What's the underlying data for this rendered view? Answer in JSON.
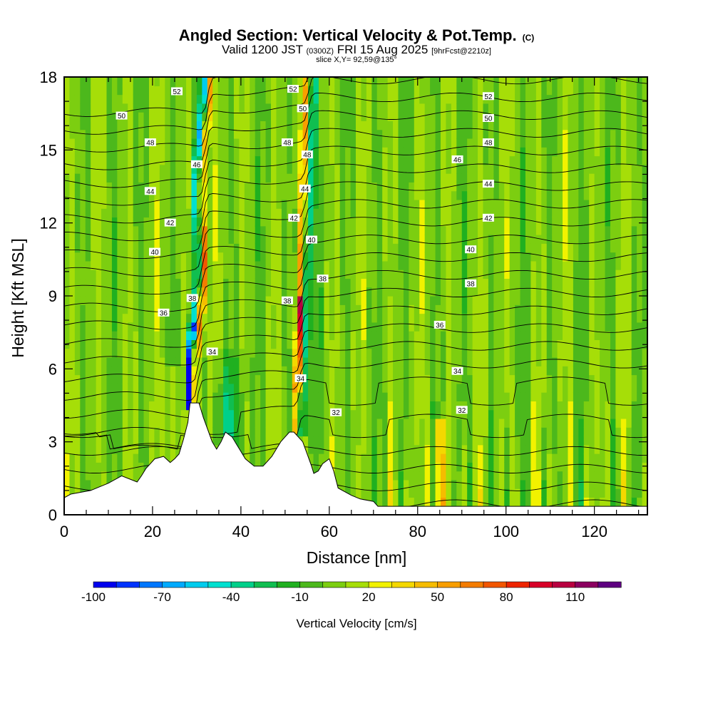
{
  "chart_data": {
    "type": "heatmap",
    "title": "Angled Section: Vertical Velocity & Pot.Temp.",
    "title_suffix": "(C)",
    "subtitle_valid": "Valid 1200 JST",
    "subtitle_utc": "(0300Z)",
    "subtitle_date": "FRI 15 Aug 2025",
    "subtitle_fcst": "[9hrFcst@2210z]",
    "slice_label": "slice X,Y= 92,59@135°",
    "xlabel": "Distance [nm]",
    "ylabel": "Height [Kft MSL]",
    "xlim": [
      0,
      132
    ],
    "ylim": [
      0,
      18
    ],
    "xticks": [
      0,
      20,
      40,
      60,
      80,
      100,
      120
    ],
    "yticks": [
      0,
      3,
      6,
      9,
      12,
      15,
      18
    ],
    "colorbar": {
      "label": "Vertical Velocity [cm/s]",
      "tick_labels": [
        "-100",
        "-70",
        "-40",
        "-10",
        "20",
        "50",
        "80",
        "110"
      ],
      "tick_values": [
        -100,
        -70,
        -40,
        -10,
        20,
        50,
        80,
        110
      ],
      "bins": [
        -100,
        -90,
        -80,
        -70,
        -60,
        -50,
        -40,
        -30,
        -20,
        -10,
        0,
        10,
        20,
        30,
        40,
        50,
        60,
        70,
        80,
        90,
        100,
        110,
        120
      ],
      "colors": [
        "#0000ee",
        "#0033ff",
        "#0077ff",
        "#00aaff",
        "#00ccee",
        "#00e0d0",
        "#00d08a",
        "#10be50",
        "#20b020",
        "#4cb81c",
        "#7cce10",
        "#a6de08",
        "#f2f200",
        "#f4d800",
        "#f6bc00",
        "#f89e00",
        "#f47c00",
        "#f25600",
        "#ee2400",
        "#d80028",
        "#b80040",
        "#8c0060",
        "#5e0080"
      ]
    },
    "theta_contour_labels": [
      {
        "value": "52",
        "x": 25.5,
        "y": 17.4
      },
      {
        "value": "52",
        "x": 51.8,
        "y": 17.5
      },
      {
        "value": "52",
        "x": 96,
        "y": 17.2
      },
      {
        "value": "50",
        "x": 13,
        "y": 16.4
      },
      {
        "value": "50",
        "x": 54,
        "y": 16.7
      },
      {
        "value": "50",
        "x": 96,
        "y": 16.3
      },
      {
        "value": "48",
        "x": 19.5,
        "y": 15.3
      },
      {
        "value": "48",
        "x": 50.5,
        "y": 15.3
      },
      {
        "value": "48",
        "x": 55,
        "y": 14.8
      },
      {
        "value": "48",
        "x": 96,
        "y": 15.3
      },
      {
        "value": "46",
        "x": 30,
        "y": 14.4
      },
      {
        "value": "46",
        "x": 89,
        "y": 14.6
      },
      {
        "value": "44",
        "x": 19.5,
        "y": 13.3
      },
      {
        "value": "44",
        "x": 54.5,
        "y": 13.4
      },
      {
        "value": "44",
        "x": 96,
        "y": 13.6
      },
      {
        "value": "42",
        "x": 24,
        "y": 12
      },
      {
        "value": "42",
        "x": 52,
        "y": 12.2
      },
      {
        "value": "42",
        "x": 96,
        "y": 12.2
      },
      {
        "value": "40",
        "x": 20.5,
        "y": 10.8
      },
      {
        "value": "40",
        "x": 56,
        "y": 11.3
      },
      {
        "value": "40",
        "x": 92,
        "y": 10.9
      },
      {
        "value": "38",
        "x": 58.5,
        "y": 9.7
      },
      {
        "value": "38",
        "x": 92,
        "y": 9.5
      },
      {
        "value": "38",
        "x": 29,
        "y": 8.9
      },
      {
        "value": "38",
        "x": 50.5,
        "y": 8.8
      },
      {
        "value": "36",
        "x": 22.5,
        "y": 8.3
      },
      {
        "value": "36",
        "x": 85,
        "y": 7.8
      },
      {
        "value": "34",
        "x": 33.5,
        "y": 6.7
      },
      {
        "value": "34",
        "x": 53.5,
        "y": 5.6
      },
      {
        "value": "34",
        "x": 89,
        "y": 5.9
      },
      {
        "value": "32",
        "x": 61.5,
        "y": 4.2
      },
      {
        "value": "32",
        "x": 90,
        "y": 4.3
      }
    ],
    "updraft_bands": [
      {
        "name": "left band",
        "x_top": 32,
        "x_bottom": 29.5,
        "peak_cm_s": 75,
        "paired_downdraft_cm_s": -100
      },
      {
        "name": "middle band",
        "x_top": 55,
        "x_bottom": 52.5,
        "peak_cm_s": 95,
        "paired_downdraft_cm_s": -40
      }
    ],
    "terrain_kft": [
      [
        0,
        0.7
      ],
      [
        1.5,
        0.85
      ],
      [
        6,
        1.0
      ],
      [
        10,
        1.3
      ],
      [
        13,
        1.6
      ],
      [
        16.5,
        1.35
      ],
      [
        17.5,
        1.6
      ],
      [
        18.5,
        1.9
      ],
      [
        19.5,
        2.1
      ],
      [
        20.5,
        2.3
      ],
      [
        22.5,
        2.4
      ],
      [
        24,
        2.15
      ],
      [
        25,
        2.3
      ],
      [
        26,
        2.5
      ],
      [
        27,
        3.1
      ],
      [
        28,
        3.8
      ],
      [
        28.5,
        4.6
      ],
      [
        30.5,
        4.6
      ],
      [
        31.5,
        4.0
      ],
      [
        32.5,
        3.5
      ],
      [
        33.5,
        3.0
      ],
      [
        34.5,
        2.7
      ],
      [
        35.5,
        3.0
      ],
      [
        36.5,
        3.4
      ],
      [
        38,
        3.2
      ],
      [
        39,
        2.9
      ],
      [
        40,
        2.6
      ],
      [
        41,
        2.3
      ],
      [
        43,
        2.0
      ],
      [
        45,
        2.0
      ],
      [
        46,
        2.2
      ],
      [
        47,
        2.4
      ],
      [
        48,
        2.7
      ],
      [
        49,
        3.0
      ],
      [
        50,
        3.2
      ],
      [
        51,
        3.4
      ],
      [
        52,
        3.4
      ],
      [
        53,
        3.2
      ],
      [
        54,
        3.0
      ],
      [
        55,
        2.5
      ],
      [
        56,
        2.0
      ],
      [
        56.5,
        1.7
      ],
      [
        57.5,
        1.8
      ],
      [
        58.5,
        2.1
      ],
      [
        60,
        2.3
      ],
      [
        61,
        1.8
      ],
      [
        62,
        1.1
      ],
      [
        65,
        0.8
      ],
      [
        67,
        0.65
      ],
      [
        70,
        0.55
      ],
      [
        71,
        0.35
      ],
      [
        132,
        0.35
      ]
    ]
  }
}
